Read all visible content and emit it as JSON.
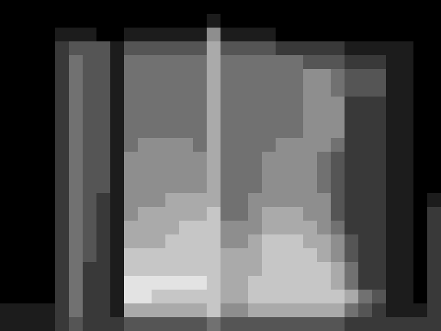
{
  "chart_data": {
    "type": "heatmap",
    "tick_labels": false,
    "xlim": [
      0,
      32
    ],
    "ylim": [
      0,
      24
    ],
    "zlim": [
      0,
      9
    ],
    "cells": [
      [
        0,
        0,
        0,
        0,
        0,
        0,
        0,
        0,
        0,
        0,
        0,
        0,
        0,
        0,
        0,
        0,
        0,
        0,
        0,
        0,
        0,
        0,
        0,
        0,
        0,
        0,
        0,
        0,
        0,
        0,
        0,
        0
      ],
      [
        0,
        0,
        0,
        0,
        0,
        0,
        0,
        0,
        0,
        0,
        0,
        0,
        0,
        0,
        0,
        1,
        0,
        0,
        0,
        0,
        0,
        0,
        0,
        0,
        0,
        0,
        0,
        0,
        0,
        0,
        0,
        0
      ],
      [
        0,
        0,
        0,
        0,
        1,
        1,
        1,
        0,
        0,
        1,
        1,
        1,
        1,
        1,
        1,
        5,
        1,
        1,
        1,
        1,
        0,
        0,
        0,
        0,
        0,
        0,
        0,
        0,
        0,
        0,
        0,
        0
      ],
      [
        0,
        0,
        0,
        0,
        2,
        3,
        3,
        3,
        1,
        3,
        3,
        3,
        3,
        3,
        3,
        6,
        3,
        3,
        3,
        3,
        2,
        2,
        2,
        2,
        2,
        1,
        1,
        1,
        1,
        1,
        0,
        0
      ],
      [
        0,
        0,
        0,
        0,
        2,
        4,
        3,
        3,
        1,
        4,
        4,
        4,
        4,
        4,
        4,
        6,
        4,
        4,
        4,
        4,
        4,
        4,
        3,
        3,
        3,
        2,
        2,
        2,
        1,
        1,
        0,
        0
      ],
      [
        0,
        0,
        0,
        0,
        2,
        4,
        3,
        3,
        1,
        4,
        4,
        4,
        4,
        4,
        4,
        6,
        4,
        4,
        4,
        4,
        4,
        4,
        5,
        5,
        4,
        3,
        3,
        3,
        1,
        1,
        0,
        0
      ],
      [
        0,
        0,
        0,
        0,
        2,
        4,
        3,
        3,
        1,
        4,
        4,
        4,
        4,
        4,
        4,
        6,
        4,
        4,
        4,
        4,
        4,
        4,
        5,
        5,
        4,
        3,
        3,
        3,
        1,
        1,
        0,
        0
      ],
      [
        0,
        0,
        0,
        0,
        2,
        4,
        3,
        3,
        1,
        4,
        4,
        4,
        4,
        4,
        4,
        6,
        4,
        4,
        4,
        4,
        4,
        4,
        5,
        5,
        5,
        2,
        2,
        2,
        1,
        1,
        0,
        0
      ],
      [
        0,
        0,
        0,
        0,
        2,
        4,
        3,
        3,
        1,
        4,
        4,
        4,
        4,
        4,
        4,
        6,
        4,
        4,
        4,
        4,
        4,
        4,
        5,
        5,
        5,
        2,
        2,
        2,
        1,
        1,
        0,
        0
      ],
      [
        0,
        0,
        0,
        0,
        2,
        4,
        3,
        3,
        1,
        4,
        4,
        4,
        4,
        4,
        4,
        6,
        4,
        4,
        4,
        4,
        4,
        4,
        5,
        5,
        5,
        2,
        2,
        2,
        1,
        1,
        0,
        0
      ],
      [
        0,
        0,
        0,
        0,
        2,
        4,
        3,
        3,
        1,
        4,
        5,
        5,
        5,
        5,
        4,
        6,
        4,
        4,
        4,
        4,
        5,
        5,
        5,
        5,
        4,
        2,
        2,
        2,
        1,
        1,
        0,
        0
      ],
      [
        0,
        0,
        0,
        0,
        2,
        4,
        3,
        3,
        1,
        5,
        5,
        5,
        5,
        5,
        5,
        6,
        4,
        4,
        4,
        5,
        5,
        5,
        5,
        4,
        3,
        2,
        2,
        2,
        1,
        1,
        0,
        0
      ],
      [
        0,
        0,
        0,
        0,
        2,
        4,
        3,
        3,
        1,
        5,
        5,
        5,
        5,
        5,
        5,
        6,
        4,
        4,
        4,
        5,
        5,
        5,
        5,
        4,
        3,
        2,
        2,
        2,
        1,
        1,
        0,
        0
      ],
      [
        0,
        0,
        0,
        0,
        2,
        4,
        3,
        3,
        1,
        5,
        5,
        5,
        5,
        5,
        5,
        6,
        4,
        4,
        4,
        5,
        5,
        5,
        5,
        4,
        3,
        2,
        2,
        2,
        1,
        1,
        0,
        0
      ],
      [
        0,
        0,
        0,
        0,
        2,
        4,
        3,
        2,
        1,
        5,
        5,
        5,
        6,
        6,
        6,
        6,
        4,
        4,
        5,
        5,
        5,
        5,
        5,
        5,
        3,
        2,
        2,
        2,
        1,
        1,
        0,
        1
      ],
      [
        0,
        0,
        0,
        0,
        2,
        4,
        3,
        2,
        1,
        5,
        6,
        6,
        6,
        6,
        6,
        7,
        4,
        4,
        5,
        6,
        6,
        6,
        5,
        5,
        3,
        2,
        2,
        2,
        1,
        1,
        0,
        2
      ],
      [
        0,
        0,
        0,
        0,
        2,
        4,
        3,
        2,
        1,
        6,
        6,
        6,
        6,
        7,
        7,
        7,
        5,
        5,
        5,
        6,
        6,
        6,
        6,
        5,
        4,
        2,
        2,
        2,
        1,
        1,
        0,
        2
      ],
      [
        0,
        0,
        0,
        0,
        2,
        4,
        3,
        2,
        1,
        6,
        6,
        6,
        7,
        7,
        7,
        7,
        5,
        5,
        6,
        7,
        7,
        7,
        6,
        6,
        5,
        3,
        2,
        2,
        1,
        1,
        0,
        2
      ],
      [
        0,
        0,
        0,
        0,
        2,
        4,
        3,
        2,
        1,
        7,
        7,
        7,
        7,
        7,
        7,
        7,
        6,
        6,
        6,
        7,
        7,
        7,
        7,
        6,
        5,
        3,
        2,
        2,
        1,
        1,
        0,
        2
      ],
      [
        0,
        0,
        0,
        0,
        2,
        4,
        2,
        2,
        1,
        7,
        7,
        7,
        7,
        7,
        7,
        7,
        6,
        6,
        6,
        7,
        7,
        7,
        7,
        7,
        6,
        4,
        2,
        2,
        1,
        1,
        0,
        2
      ],
      [
        0,
        0,
        0,
        0,
        2,
        4,
        2,
        2,
        1,
        8,
        8,
        8,
        8,
        8,
        8,
        7,
        6,
        6,
        7,
        7,
        7,
        7,
        7,
        7,
        6,
        4,
        2,
        2,
        1,
        1,
        0,
        2
      ],
      [
        0,
        0,
        0,
        0,
        2,
        4,
        2,
        2,
        1,
        8,
        8,
        7,
        7,
        7,
        7,
        7,
        6,
        6,
        7,
        7,
        7,
        7,
        7,
        7,
        7,
        6,
        4,
        3,
        1,
        1,
        0,
        2
      ],
      [
        1,
        1,
        1,
        1,
        2,
        4,
        2,
        2,
        1,
        6,
        6,
        6,
        6,
        6,
        6,
        7,
        5,
        5,
        6,
        6,
        6,
        6,
        6,
        6,
        6,
        4,
        3,
        2,
        1,
        1,
        1,
        2
      ],
      [
        1,
        1,
        1,
        1,
        2,
        3,
        2,
        2,
        2,
        3,
        3,
        3,
        3,
        3,
        3,
        4,
        3,
        3,
        3,
        3,
        3,
        3,
        3,
        3,
        3,
        2,
        2,
        2,
        2,
        2,
        2,
        2
      ]
    ]
  }
}
